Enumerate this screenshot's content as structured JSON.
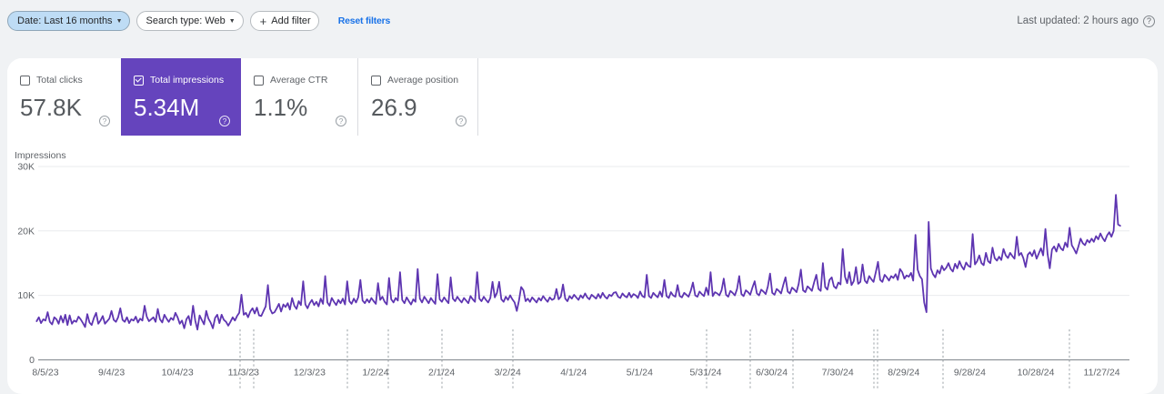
{
  "topbar": {
    "date_filter": "Date: Last 16 months",
    "search_type_filter": "Search type: Web",
    "add_filter_plus": "+",
    "add_filter": "Add filter",
    "reset_filters": "Reset filters",
    "last_updated": "Last updated: 2 hours ago",
    "help_glyph": "?"
  },
  "metrics": [
    {
      "label": "Total clicks",
      "value": "57.8K",
      "checked": false,
      "selected": false
    },
    {
      "label": "Total impressions",
      "value": "5.34M",
      "checked": true,
      "selected": true,
      "color": "#6544bd"
    },
    {
      "label": "Average CTR",
      "value": "1.1%",
      "checked": false,
      "selected": false
    },
    {
      "label": "Average position",
      "value": "26.9",
      "checked": false,
      "selected": false
    }
  ],
  "chart_data": {
    "type": "line",
    "title": "Impressions",
    "x_tick_labels": [
      "8/5/23",
      "9/4/23",
      "10/4/23",
      "11/3/23",
      "12/3/23",
      "1/2/24",
      "2/1/24",
      "3/2/24",
      "4/1/24",
      "5/1/24",
      "5/31/24",
      "6/30/24",
      "7/30/24",
      "8/29/24",
      "9/28/24",
      "10/28/24",
      "11/27/24"
    ],
    "y_tick_labels": [
      "0",
      "10K",
      "20K",
      "30K"
    ],
    "y_ticks": [
      0,
      10000,
      20000,
      30000
    ],
    "ylim": [
      0,
      30000
    ],
    "grid": "horizontal",
    "sample_interval_days": 1,
    "line_color": "#5e35b1",
    "annotation_markers_x_px": [
      264,
      279,
      382,
      427,
      486,
      564,
      777,
      825,
      872,
      961,
      965,
      1037,
      1176
    ],
    "series": [
      {
        "name": "Total impressions",
        "values": [
          6000,
          6600,
          5700,
          6300,
          6100,
          7400,
          5900,
          5500,
          6600,
          6300,
          5600,
          6800,
          5800,
          7000,
          5400,
          6900,
          5600,
          6100,
          5900,
          6700,
          6300,
          5700,
          5100,
          7100,
          5800,
          5400,
          6500,
          7300,
          5600,
          6100,
          6800,
          5600,
          6000,
          6400,
          7600,
          6200,
          5900,
          6600,
          8000,
          6200,
          5900,
          6600,
          5700,
          6300,
          6100,
          6700,
          5800,
          6400,
          6100,
          8400,
          6700,
          6000,
          6300,
          6600,
          5900,
          7900,
          6300,
          5800,
          7000,
          6400,
          5900,
          6500,
          6200,
          7300,
          6600,
          5600,
          6100,
          4900,
          6300,
          6800,
          5400,
          8400,
          6100,
          4700,
          6900,
          6200,
          5500,
          7600,
          6400,
          5800,
          4900,
          6500,
          7000,
          5700,
          7000,
          6200,
          5900,
          5300,
          5900,
          6600,
          6100,
          6800,
          7300,
          10100,
          7000,
          7300,
          6600,
          7500,
          8000,
          7200,
          8100,
          6900,
          6800,
          7600,
          8300,
          11600,
          7900,
          7200,
          7400,
          8000,
          8700,
          7500,
          8600,
          8200,
          8800,
          7800,
          9600,
          8400,
          7900,
          9100,
          8500,
          12200,
          8600,
          8000,
          8800,
          9300,
          8500,
          9000,
          8300,
          9500,
          8700,
          13000,
          8900,
          8400,
          9600,
          9000,
          8500,
          9300,
          8800,
          9500,
          8600,
          12200,
          9100,
          8700,
          9500,
          8900,
          9700,
          12400,
          9200,
          8800,
          9400,
          8900,
          9600,
          9100,
          8700,
          11900,
          9300,
          9800,
          9000,
          8600,
          12700,
          9400,
          8900,
          9600,
          9200,
          13600,
          9300,
          8800,
          9700,
          9100,
          8600,
          9400,
          9000,
          14100,
          9500,
          8900,
          9800,
          9300,
          8800,
          9600,
          9100,
          8700,
          13300,
          9400,
          9000,
          9700,
          9200,
          8800,
          12800,
          9500,
          9100,
          9800,
          9300,
          8900,
          9600,
          9200,
          8800,
          9900,
          9400,
          9000,
          13600,
          9500,
          9100,
          9800,
          9300,
          8900,
          9600,
          12100,
          9700,
          10400,
          12100,
          9400,
          9000,
          9800,
          9300,
          10000,
          9400,
          8900,
          7600,
          9200,
          11300,
          10800,
          9100,
          9500,
          9000,
          9700,
          9300,
          8900,
          9600,
          9200,
          9900,
          9400,
          9000,
          9700,
          9300,
          9500,
          11000,
          9400,
          9800,
          11700,
          9500,
          9100,
          9900,
          9500,
          10100,
          9700,
          9300,
          10000,
          9600,
          10300,
          9700,
          9400,
          10100,
          9800,
          9500,
          10200,
          9600,
          10400,
          9800,
          9500,
          10100,
          9900,
          10400,
          10500,
          9800,
          9600,
          10300,
          9900,
          9700,
          10400,
          9700,
          10200,
          10000,
          9600,
          10600,
          9900,
          9700,
          13200,
          9900,
          9600,
          10400,
          10000,
          9700,
          10600,
          9800,
          12400,
          9900,
          9600,
          10500,
          10000,
          9800,
          11600,
          9900,
          9700,
          10400,
          10100,
          9800,
          10700,
          12000,
          10000,
          9800,
          10600,
          10200,
          9900,
          11200,
          10100,
          13600,
          9900,
          10500,
          10300,
          10000,
          10800,
          12600,
          10100,
          9800,
          10700,
          10400,
          10000,
          11000,
          13000,
          10200,
          9900,
          10800,
          10500,
          10100,
          11200,
          12200,
          10300,
          10000,
          10900,
          10600,
          10200,
          11400,
          13400,
          10400,
          10100,
          11000,
          10700,
          10300,
          11600,
          12800,
          10600,
          10300,
          11200,
          10900,
          10500,
          11800,
          14000,
          10800,
          10500,
          11400,
          11100,
          10700,
          12000,
          13200,
          11000,
          10700,
          15000,
          11300,
          10900,
          12400,
          12800,
          11400,
          11100,
          12000,
          11700,
          17200,
          12900,
          11900,
          13600,
          11600,
          12200,
          14400,
          11800,
          12100,
          14800,
          12300,
          11900,
          13000,
          12500,
          12100,
          13600,
          15200,
          12400,
          12100,
          13200,
          12800,
          12300,
          13000,
          12700,
          13300,
          12400,
          14100,
          13600,
          12600,
          13100,
          12900,
          13500,
          12300,
          19400,
          14000,
          13000,
          12500,
          8900,
          7400,
          21400,
          14200,
          13300,
          12800,
          13900,
          13400,
          14600,
          13900,
          14300,
          15000,
          14100,
          13700,
          14900,
          14200,
          15300,
          14500,
          14000,
          15100,
          14600,
          14400,
          19500,
          14800,
          15300,
          16200,
          15000,
          14700,
          16600,
          15300,
          15000,
          17400,
          15800,
          15400,
          16000,
          15500,
          17200,
          16200,
          15800,
          16600,
          16100,
          15700,
          19100,
          16200,
          16600,
          15800,
          14400,
          16300,
          16700,
          16100,
          17000,
          15700,
          16500,
          17300,
          16200,
          20300,
          16400,
          14200,
          17100,
          17600,
          16800,
          18000,
          17300,
          17000,
          18200,
          17500,
          20500,
          17800,
          17200,
          16500,
          17600,
          18800,
          18100,
          17800,
          18600,
          18200,
          18800,
          18300,
          19200,
          18700,
          19600,
          18900,
          18400,
          19300,
          19800,
          19100,
          20000,
          25600,
          21000,
          20800
        ]
      }
    ]
  }
}
